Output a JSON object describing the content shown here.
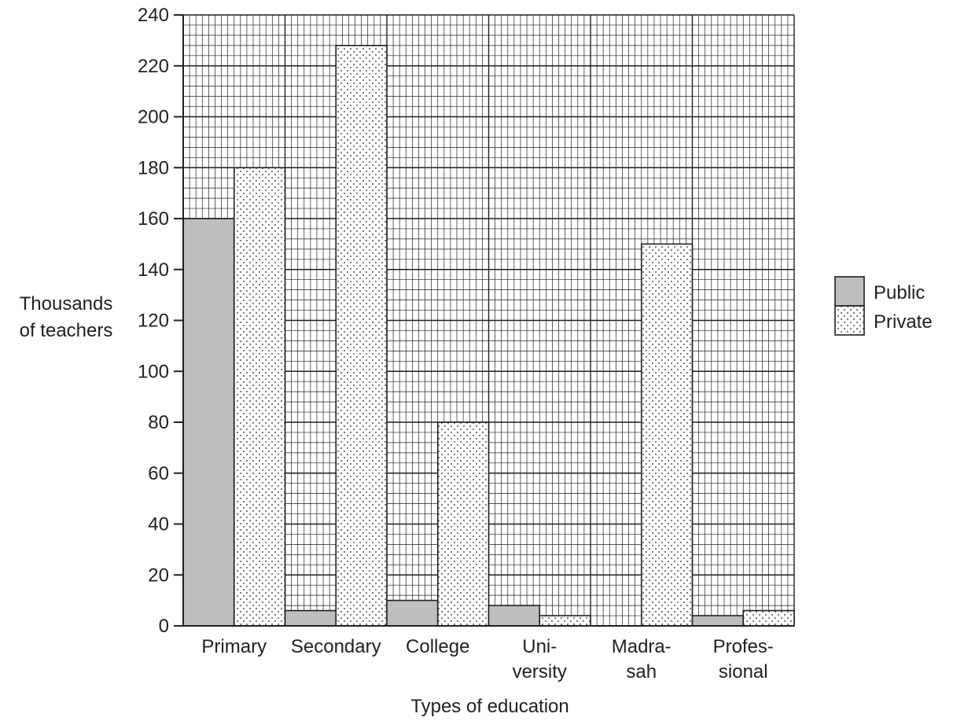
{
  "chart_data": {
    "type": "bar",
    "xlabel": "Types of education",
    "ylabel": [
      "Thousands",
      "of teachers"
    ],
    "ylim": [
      0,
      240
    ],
    "y_major_step": 20,
    "y_minor_step": 4,
    "x_minor_per_category": 16,
    "grid": true,
    "legend_position": "right",
    "categories": [
      [
        "Primary"
      ],
      [
        "Secondary"
      ],
      [
        "College"
      ],
      [
        "Uni-",
        "versity"
      ],
      [
        "Madra-",
        "sah"
      ],
      [
        "Profes-",
        "sional"
      ]
    ],
    "series": [
      {
        "name": "Public",
        "pattern": "solid-grey",
        "color": "#bcbec0",
        "values": [
          160,
          6,
          10,
          8,
          0,
          4
        ]
      },
      {
        "name": "Private",
        "pattern": "dotted",
        "color": "#ffffff",
        "values": [
          180,
          228,
          80,
          4,
          150,
          6
        ]
      }
    ]
  }
}
